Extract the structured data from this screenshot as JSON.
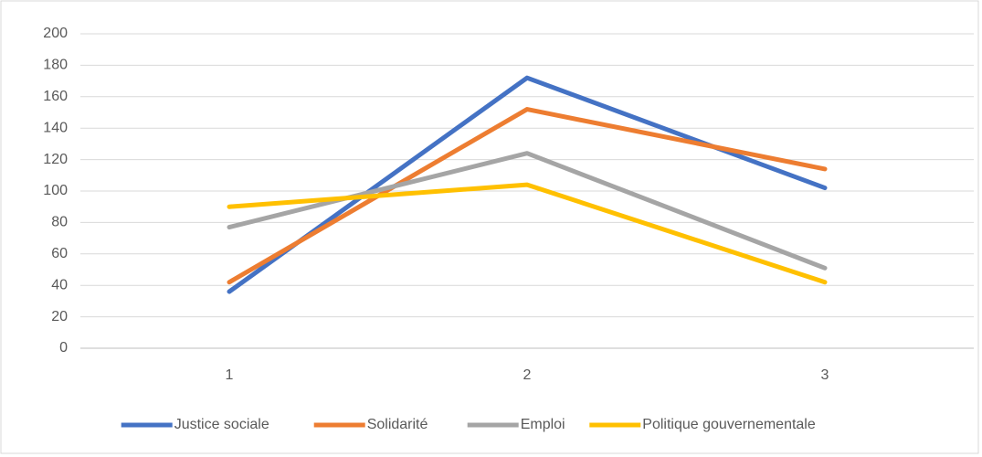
{
  "chart_data": {
    "type": "line",
    "categories": [
      "1",
      "2",
      "3"
    ],
    "series": [
      {
        "name": "Justice sociale",
        "color": "#4472c4",
        "values": [
          36,
          172,
          102
        ]
      },
      {
        "name": "Solidarité",
        "color": "#ed7d31",
        "values": [
          42,
          152,
          114
        ]
      },
      {
        "name": "Emploi",
        "color": "#a5a5a5",
        "values": [
          77,
          124,
          51
        ]
      },
      {
        "name": "Politique gouvernementale",
        "color": "#ffc000",
        "values": [
          90,
          104,
          42
        ]
      }
    ],
    "ylim": [
      0,
      200
    ],
    "yticks": [
      0,
      20,
      40,
      60,
      80,
      100,
      120,
      140,
      160,
      180,
      200
    ],
    "grid": true,
    "legend": "bottom"
  }
}
